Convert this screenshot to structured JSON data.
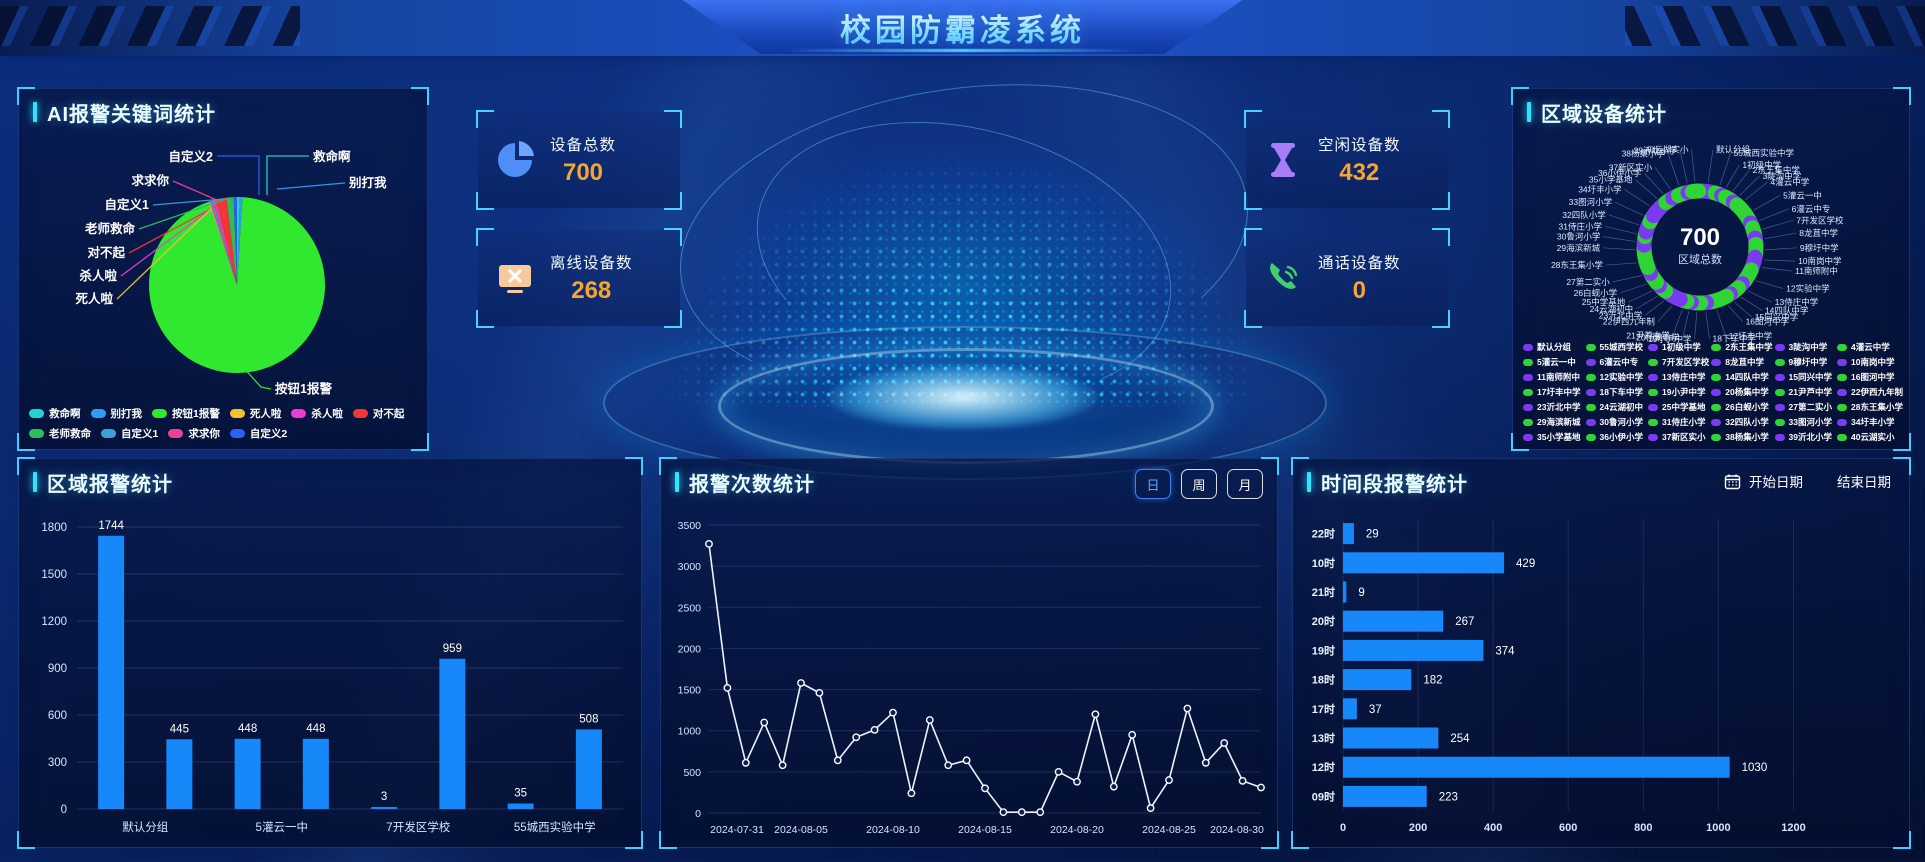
{
  "header": {
    "title": "校园防霸凌系统"
  },
  "stats": [
    {
      "label": "设备总数",
      "value": "700",
      "icon": "pie-chart-icon",
      "color": "#4f8ef8"
    },
    {
      "label": "离线设备数",
      "value": "268",
      "icon": "offline-monitor-icon",
      "color": "#f7b267"
    },
    {
      "label": "空闲设备数",
      "value": "432",
      "icon": "hourglass-icon",
      "color": "#a97df7"
    },
    {
      "label": "通话设备数",
      "value": "0",
      "icon": "phone-icon",
      "color": "#43d06a"
    }
  ],
  "panels": {
    "keywords": {
      "title": "AI报警关键词统计"
    },
    "regions": {
      "title": "区域设备统计"
    },
    "region_bar": {
      "title": "区域报警统计"
    },
    "line": {
      "title": "报警次数统计",
      "range_buttons": [
        "日",
        "周",
        "月"
      ],
      "selected_range": "日"
    },
    "hours": {
      "title": "时间段报警统计",
      "start_label": "开始日期",
      "end_label": "结束日期"
    }
  },
  "chart_data": [
    {
      "id": "keywords-pie",
      "type": "pie",
      "title": "AI报警关键词统计",
      "note": "no numeric labels visible; values are percent estimates from slice angles",
      "slices": [
        {
          "name": "救命啊",
          "value": 0.5,
          "color": "#22d3d3"
        },
        {
          "name": "别打我",
          "value": 0.5,
          "color": "#2f9df0"
        },
        {
          "name": "按钮1报警",
          "value": 93.0,
          "color": "#30e830"
        },
        {
          "name": "死人啦",
          "value": 0.2,
          "color": "#f2c12e"
        },
        {
          "name": "杀人啦",
          "value": 0.25,
          "color": "#ef3ad4"
        },
        {
          "name": "对不起",
          "value": 1.8,
          "color": "#f23535"
        },
        {
          "name": "老师救命",
          "value": 1.3,
          "color": "#2bbf5e"
        },
        {
          "name": "自定义1",
          "value": 0.35,
          "color": "#3e9fd9"
        },
        {
          "name": "求求你",
          "value": 0.7,
          "color": "#e84393"
        },
        {
          "name": "自定义2",
          "value": 0.6,
          "color": "#2d5ff0"
        }
      ],
      "draw_order": [
        "救命啊",
        "别打我",
        "按钮1报警",
        "死人啦",
        "杀人啦",
        "自定义1",
        "求求你",
        "对不起",
        "老师救命",
        "自定义2"
      ],
      "callouts": [
        "自定义2",
        "求求你",
        "自定义1",
        "老师救命",
        "对不起",
        "杀人啦",
        "死人啦",
        "救命啊",
        "别打我",
        "按钮1报警"
      ],
      "legend_order": [
        "救命啊",
        "别打我",
        "按钮1报警",
        "死人啦",
        "杀人啦",
        "对不起",
        "老师救命",
        "自定义1",
        "求求你",
        "自定义2"
      ]
    },
    {
      "id": "regions-donut",
      "type": "donut",
      "title": "区域设备统计",
      "center_value": "700",
      "center_label": "区域总数",
      "colors": {
        "purple": "#7a3bf0",
        "green": "#2fd535"
      },
      "note": "segment sizes estimated; color pattern is checkerboard over 6-column legend",
      "items": [
        {
          "name": "默认分组",
          "weight": 2.4
        },
        {
          "name": "55城西实验中学",
          "legend_name": "55城西学校",
          "weight": 1.2
        },
        {
          "name": "1初级中学",
          "weight": 0.7
        },
        {
          "name": "2东王集中学",
          "weight": 1.6
        },
        {
          "name": "3陡沟中学",
          "weight": 0.8
        },
        {
          "name": "4灌云中学",
          "weight": 1.3
        },
        {
          "name": "5灌云一中",
          "weight": 2.6
        },
        {
          "name": "6灌云中专",
          "weight": 0.9
        },
        {
          "name": "7开发区学校",
          "weight": 1.8
        },
        {
          "name": "8龙苴中学",
          "weight": 1.1
        },
        {
          "name": "9穆圩中学",
          "weight": 2.2
        },
        {
          "name": "10南岗中学",
          "weight": 0.8
        },
        {
          "name": "11南师附中",
          "weight": 1.5
        },
        {
          "name": "12实验中学",
          "weight": 2.8
        },
        {
          "name": "13侍庄中学",
          "weight": 1.0
        },
        {
          "name": "14四队中学",
          "weight": 1.7
        },
        {
          "name": "15同兴中学",
          "weight": 0.8
        },
        {
          "name": "16图河中学",
          "weight": 1.3
        },
        {
          "name": "17圩丰中学",
          "weight": 2.3
        },
        {
          "name": "18下车中学",
          "weight": 1.0
        },
        {
          "name": "19小尹中学",
          "weight": 1.6
        },
        {
          "name": "20杨集中学",
          "weight": 0.8
        },
        {
          "name": "21尹芦中学",
          "weight": 1.2
        },
        {
          "name": "22伊西九年制",
          "weight": 2.0
        },
        {
          "name": "23沂北中学",
          "weight": 0.9
        },
        {
          "name": "24云湖初中",
          "weight": 1.4
        },
        {
          "name": "25中学基地",
          "weight": 0.8
        },
        {
          "name": "26白蚬小学",
          "weight": 1.8
        },
        {
          "name": "27第二实小",
          "weight": 1.1
        },
        {
          "name": "28东王集小学",
          "weight": 2.9
        },
        {
          "name": "29海滨新城",
          "weight": 1.0
        },
        {
          "name": "30鲁河小学",
          "weight": 1.5
        },
        {
          "name": "31侍庄小学",
          "weight": 0.8
        },
        {
          "name": "32四队小学",
          "weight": 1.9
        },
        {
          "name": "33图河小学",
          "weight": 1.2
        },
        {
          "name": "34圩丰小学",
          "weight": 2.2
        },
        {
          "name": "35小学基地",
          "weight": 0.9
        },
        {
          "name": "36小伊小学",
          "weight": 1.4
        },
        {
          "name": "37新区实小",
          "weight": 1.1
        },
        {
          "name": "38杨集小学",
          "weight": 1.7
        },
        {
          "name": "39沂北小学",
          "weight": 0.8
        },
        {
          "name": "40云湖实小",
          "weight": 1.5
        }
      ]
    },
    {
      "id": "region-bar",
      "type": "bar",
      "title": "区域报警统计",
      "values": [
        1744,
        445,
        448,
        448,
        3,
        959,
        35,
        508
      ],
      "x_tick_labels": [
        "默认分组",
        "5灌云一中",
        "7开发区学校",
        "55城西实验中学"
      ],
      "x_tick_bar_indexes": [
        0,
        2,
        4,
        6
      ],
      "y_ticks": [
        0,
        300,
        600,
        900,
        1200,
        1500,
        1800
      ],
      "ylim": [
        0,
        1800
      ],
      "bar_color": "#1688fa"
    },
    {
      "id": "alarm-line",
      "type": "line",
      "title": "报警次数统计",
      "x_tick_labels": [
        "2024-07-31",
        "2024-08-05",
        "2024-08-10",
        "2024-08-15",
        "2024-08-20",
        "2024-08-25",
        "2024-08-30"
      ],
      "x_tick_indexes": [
        0,
        5,
        10,
        15,
        20,
        25,
        30
      ],
      "values": [
        3270,
        1520,
        610,
        1100,
        580,
        1580,
        1460,
        640,
        920,
        1010,
        1220,
        240,
        1130,
        580,
        640,
        300,
        10,
        10,
        10,
        500,
        380,
        1200,
        320,
        950,
        60,
        400,
        1270,
        610,
        850,
        390,
        310
      ],
      "y_ticks": [
        0,
        500,
        1000,
        1500,
        2000,
        2500,
        3000,
        3500
      ],
      "ylim": [
        0,
        3500
      ],
      "line_color": "#edf3fd"
    },
    {
      "id": "hour-bar",
      "type": "hbar",
      "title": "时间段报警统计",
      "categories": [
        "22时",
        "10时",
        "21时",
        "20时",
        "19时",
        "18时",
        "17时",
        "13时",
        "12时",
        "09时"
      ],
      "values": [
        29,
        429,
        9,
        267,
        374,
        182,
        37,
        254,
        1030,
        223
      ],
      "x_ticks": [
        0,
        200,
        400,
        600,
        800,
        1000,
        1200
      ],
      "xlim": [
        0,
        1300
      ],
      "bar_color": "#1688fa"
    }
  ]
}
